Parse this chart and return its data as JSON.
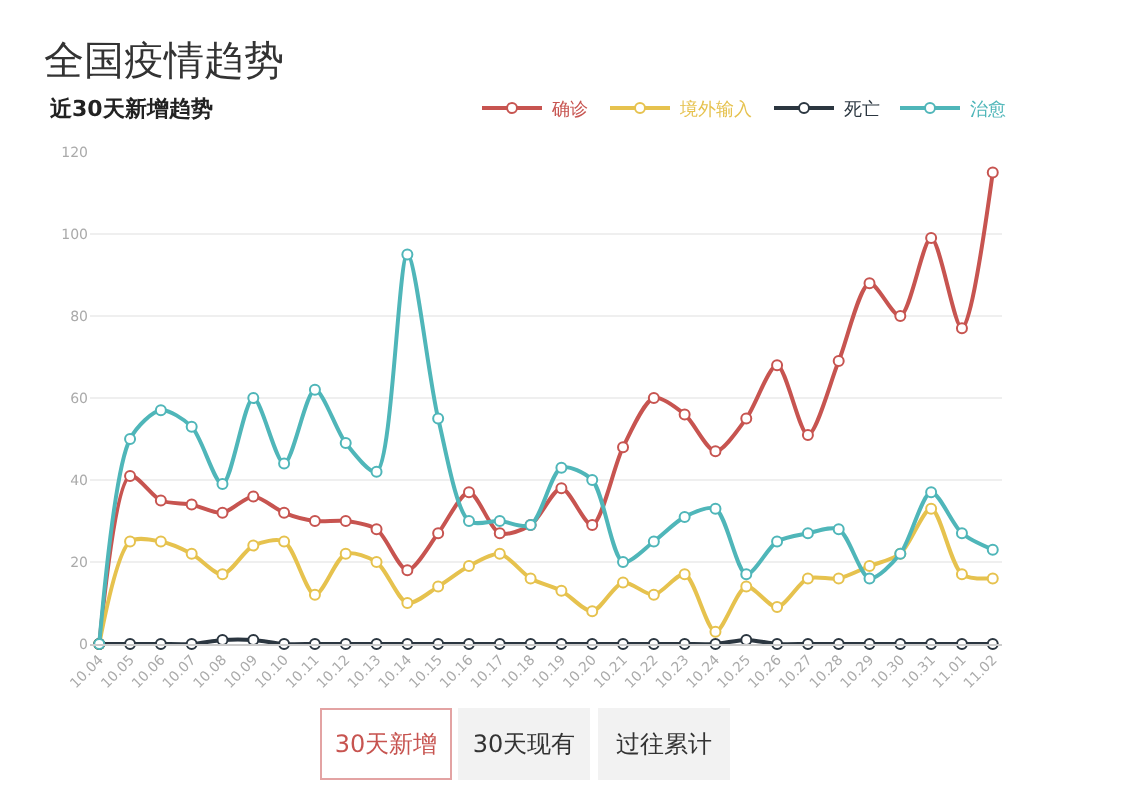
{
  "chart_data": {
    "type": "line",
    "title": "全国疫情趋势",
    "subtitle": "近30天新增趋势",
    "categories": [
      "10.04",
      "10.05",
      "10.06",
      "10.07",
      "10.08",
      "10.09",
      "10.10",
      "10.11",
      "10.12",
      "10.13",
      "10.14",
      "10.15",
      "10.16",
      "10.17",
      "10.18",
      "10.19",
      "10.20",
      "10.21",
      "10.22",
      "10.23",
      "10.24",
      "10.25",
      "10.26",
      "10.27",
      "10.28",
      "10.29",
      "10.30",
      "10.31",
      "11.01",
      "11.02"
    ],
    "series": [
      {
        "name": "确诊",
        "color": "#c75450",
        "values": [
          0,
          41,
          35,
          34,
          32,
          36,
          32,
          30,
          30,
          28,
          18,
          27,
          37,
          27,
          29,
          38,
          29,
          48,
          60,
          56,
          47,
          55,
          68,
          51,
          69,
          88,
          80,
          99,
          77,
          115
        ]
      },
      {
        "name": "境外输入",
        "color": "#e6c24e",
        "values": [
          0,
          25,
          25,
          22,
          17,
          24,
          25,
          12,
          22,
          20,
          10,
          14,
          19,
          22,
          16,
          13,
          8,
          15,
          12,
          17,
          3,
          14,
          9,
          16,
          16,
          19,
          22,
          33,
          17,
          16
        ]
      },
      {
        "name": "死亡",
        "color": "#2b3640",
        "values": [
          0,
          0,
          0,
          0,
          1,
          1,
          0,
          0,
          0,
          0,
          0,
          0,
          0,
          0,
          0,
          0,
          0,
          0,
          0,
          0,
          0,
          1,
          0,
          0,
          0,
          0,
          0,
          0,
          0,
          0
        ]
      },
      {
        "name": "治愈",
        "color": "#4fb6b9",
        "values": [
          0,
          50,
          57,
          53,
          39,
          60,
          44,
          62,
          49,
          42,
          95,
          55,
          30,
          30,
          29,
          43,
          40,
          20,
          25,
          31,
          33,
          17,
          25,
          27,
          28,
          16,
          22,
          37,
          27,
          23
        ]
      }
    ],
    "ylim": [
      0,
      120
    ],
    "yticks": [
      0,
      20,
      40,
      60,
      80,
      100,
      120
    ],
    "grid": "y",
    "legend": "top right",
    "marker": "circle",
    "line_style": "solid",
    "annotations": [
      "30天新增",
      "30天现有",
      "过往累计"
    ]
  }
}
